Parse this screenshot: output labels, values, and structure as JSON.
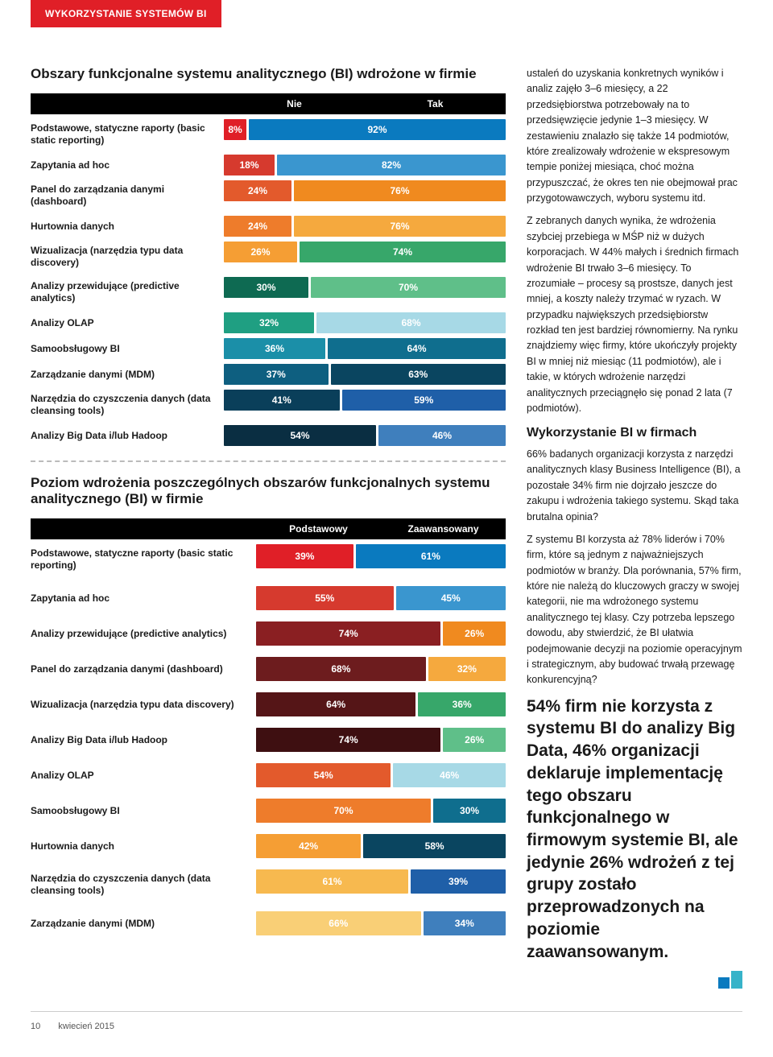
{
  "sectionTab": {
    "text": "WYKORZYSTANIE SYSTEMÓW BI",
    "bg": "#e01f27"
  },
  "table1": {
    "title": "Obszary funkcjonalne systemu analitycznego (BI) wdrożone w firmie",
    "headers": [
      "Nie",
      "Tak"
    ],
    "rows": [
      {
        "label": "Podstawowe, statyczne raporty (basic static reporting)",
        "a": 8,
        "b": 92,
        "ca": "#e01f27",
        "cb": "#0a7abf"
      },
      {
        "label": "Zapytania ad hoc",
        "a": 18,
        "b": 82,
        "ca": "#d63a2e",
        "cb": "#3a96cf"
      },
      {
        "label": "Panel do zarządzania danymi (dashboard)",
        "a": 24,
        "b": 76,
        "ca": "#e35a2c",
        "cb": "#f08a1f"
      },
      {
        "label": "Hurtownia danych",
        "a": 24,
        "b": 76,
        "ca": "#ee7c2b",
        "cb": "#f5a93e"
      },
      {
        "label": "Wizualizacja (narzędzia typu data discovery)",
        "a": 26,
        "b": 74,
        "ca": "#f59e34",
        "cb": "#37a76a"
      },
      {
        "label": "Analizy przewidujące (predictive analytics)",
        "a": 30,
        "b": 70,
        "ca": "#0e6a52",
        "cb": "#5fbf89"
      },
      {
        "label": "Analizy OLAP",
        "a": 32,
        "b": 68,
        "ca": "#1f9f82",
        "cb": "#a7d9e6"
      },
      {
        "label": "Samoobsługowy BI",
        "a": 36,
        "b": 64,
        "ca": "#1b8fa8",
        "cb": "#0f6e8e"
      },
      {
        "label": "Zarządzanie danymi (MDM)",
        "a": 37,
        "b": 63,
        "ca": "#0e5f80",
        "cb": "#0a4560"
      },
      {
        "label": "Narzędzia do czyszczenia danych (data cleansing tools)",
        "a": 41,
        "b": 59,
        "ca": "#0a3f5a",
        "cb": "#1f5fa8"
      },
      {
        "label": "Analizy Big Data i/lub Hadoop",
        "a": 54,
        "b": 46,
        "ca": "#0a2e42",
        "cb": "#3f7fbd"
      }
    ]
  },
  "table2": {
    "title": "Poziom wdrożenia poszczególnych obszarów funkcjonalnych systemu analitycznego (BI) w firmie",
    "headers": [
      "Podstawowy",
      "Zaawansowany"
    ],
    "rows": [
      {
        "label": "Podstawowe, statyczne raporty (basic static reporting)",
        "a": 39,
        "b": 61,
        "ca": "#e01f27",
        "cb": "#0a7abf"
      },
      {
        "label": "Zapytania ad hoc",
        "a": 55,
        "b": 45,
        "ca": "#d63a2e",
        "cb": "#3a96cf"
      },
      {
        "label": "Analizy przewidujące (predictive analytics)",
        "a": 74,
        "b": 26,
        "ca": "#8a1f22",
        "cb": "#f08a1f"
      },
      {
        "label": "Panel do zarządzania danymi (dashboard)",
        "a": 68,
        "b": 32,
        "ca": "#6d1c1e",
        "cb": "#f5a93e"
      },
      {
        "label": "Wizualizacja (narzędzia typu data discovery)",
        "a": 64,
        "b": 36,
        "ca": "#551517",
        "cb": "#37a76a"
      },
      {
        "label": "Analizy Big Data i/lub Hadoop",
        "a": 74,
        "b": 26,
        "ca": "#3e0f11",
        "cb": "#5fbf89"
      },
      {
        "label": "Analizy OLAP",
        "a": 54,
        "b": 46,
        "ca": "#e35a2c",
        "cb": "#a7d9e6"
      },
      {
        "label": "Samoobsługowy BI",
        "a": 70,
        "b": 30,
        "ca": "#ee7c2b",
        "cb": "#0f6e8e"
      },
      {
        "label": "Hurtownia danych",
        "a": 42,
        "b": 58,
        "ca": "#f59e34",
        "cb": "#0a4560"
      },
      {
        "label": "Narzędzia do czyszczenia danych (data cleansing tools)",
        "a": 61,
        "b": 39,
        "ca": "#f7b94f",
        "cb": "#1f5fa8"
      },
      {
        "label": "Zarządzanie danymi (MDM)",
        "a": 66,
        "b": 34,
        "ca": "#f9cf76",
        "cb": "#3f7fbd"
      }
    ]
  },
  "article": {
    "p1": "ustaleń do uzyskania konkretnych wyników i analiz zajęło 3–6 miesięcy, a 22 przedsiębiorstwa potrzebowały na to przedsięwzięcie jedynie 1–3 miesięcy. W zestawieniu znalazło się także 14 podmiotów, które zrealizowały wdrożenie w ekspresowym tempie poniżej miesiąca, choć można przypuszczać, że okres ten nie obejmował prac przygotowawczych, wyboru systemu itd.",
    "p2": "Z zebranych danych wynika, że wdrożenia szybciej przebiega w MŚP niż w dużych korporacjach. W 44% małych i średnich firmach wdrożenie BI trwało 3–6 miesięcy. To zrozumiałe – procesy są prostsze, danych jest mniej, a koszty należy trzymać w ryzach. W przypadku największych przedsiębiorstw rozkład ten jest bardziej równomierny. Na rynku znajdziemy więc firmy, które ukończyły projekty BI w mniej niż miesiąc (11 podmiotów), ale i takie, w których wdrożenie narzędzi analitycznych przeciągnęło się ponad 2 lata (7 podmiotów).",
    "h3": "Wykorzystanie BI w firmach",
    "p3": "66% badanych organizacji korzysta z narzędzi analitycznych klasy Business Intelligence (BI), a pozostałe 34% firm nie dojrzało jeszcze do zakupu i wdrożenia takiego systemu. Skąd taka brutalna opinia?",
    "p4": "Z systemu BI korzysta aż 78% liderów i 70% firm, które są jednym z najważniejszych podmiotów w branży. Dla porównania, 57% firm, które nie należą do kluczowych graczy w swojej kategorii, nie ma wdrożonego systemu analitycznego tej klasy. Czy potrzeba lepszego dowodu, aby stwierdzić, że BI ułatwia podejmowanie decyzji na poziomie operacyjnym i strategicznym, aby budować trwałą przewagę konkurencyjną?",
    "callout": "54% firm nie korzysta z systemu BI do analizy Big Data, 46% organizacji deklaruje implementację tego obszaru funkcjonalnego w firmowym systemie BI, ale jedynie 26% wdrożeń z tej grupy zostało przeprowadzonych na poziomie zaawansowanym."
  },
  "logoColors": {
    "a": "#0a7abf",
    "b": "#37b3c9"
  },
  "footer": {
    "pageNum": "10",
    "date": "kwiecień 2015"
  }
}
